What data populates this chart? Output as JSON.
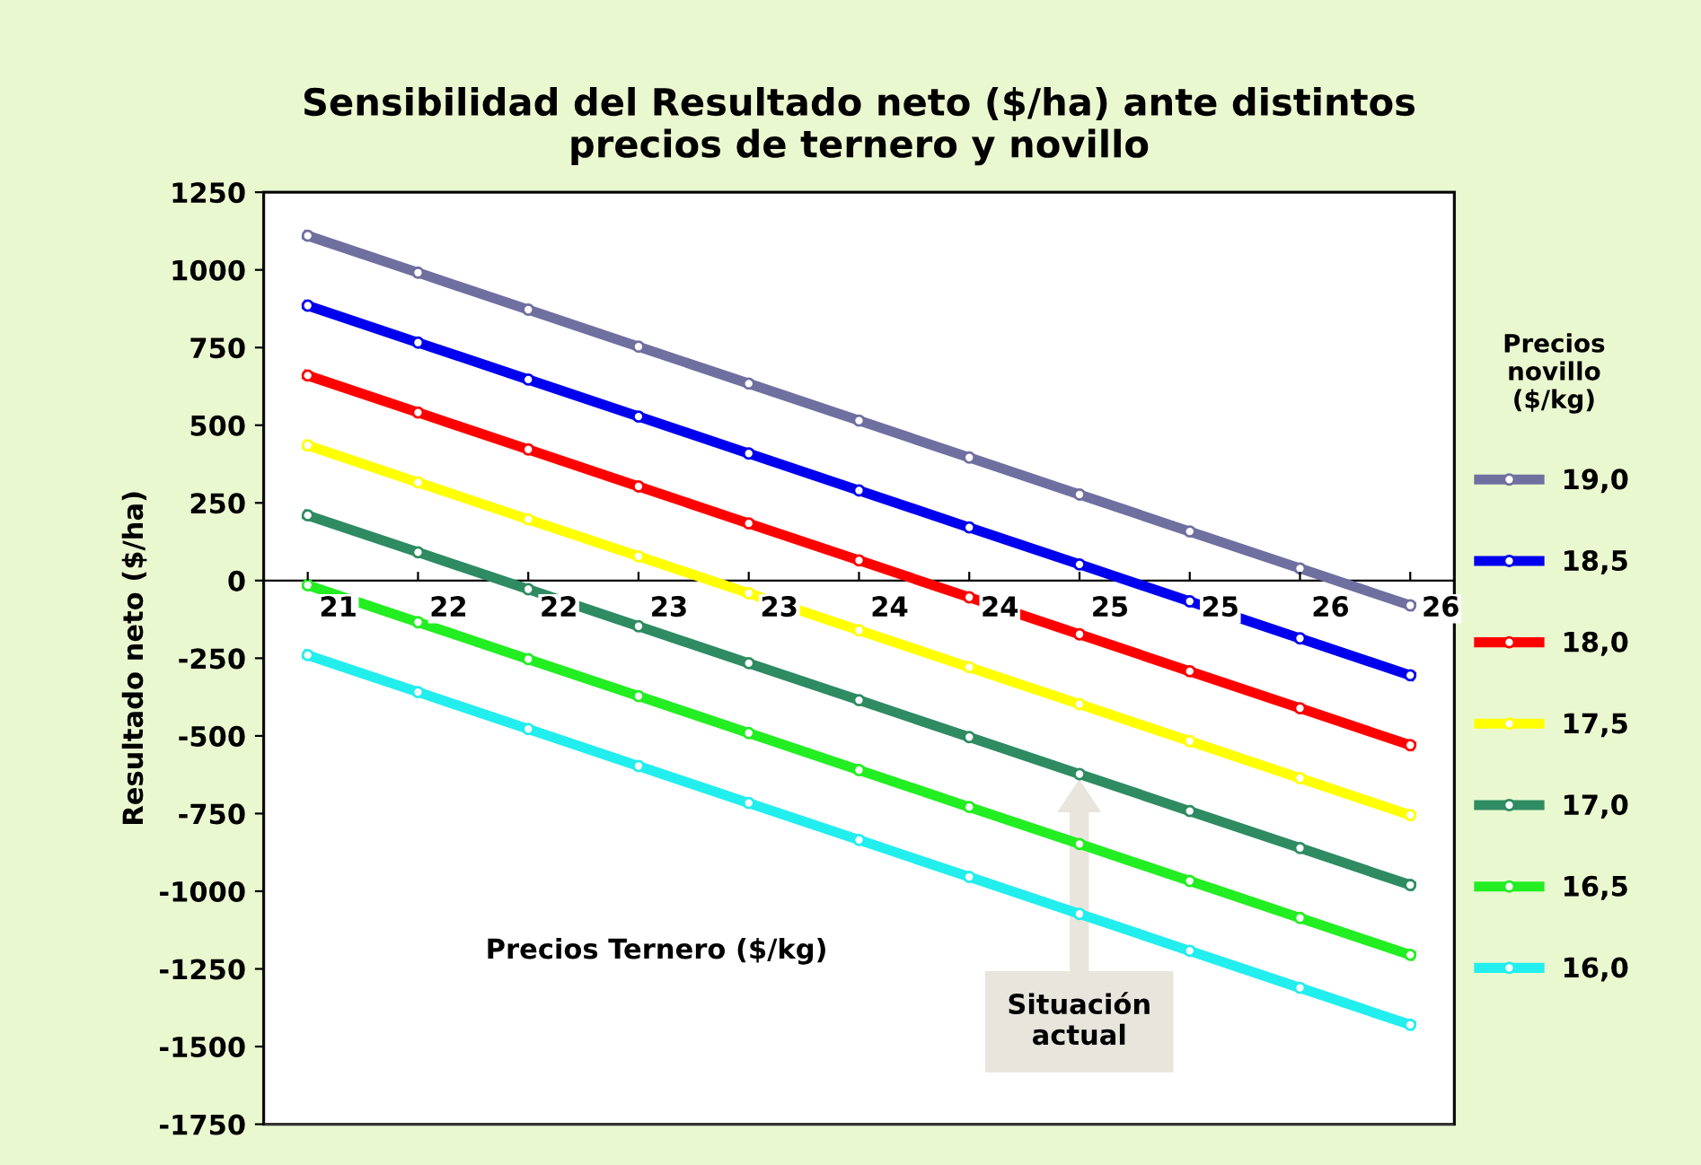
{
  "chart_data": {
    "type": "line",
    "title": "Sensibilidad del Resultado neto ($/ha) ante distintos\nprecios de ternero y novillo",
    "xlabel": "Precios Ternero ($/kg)",
    "ylabel": "Resultado neto ($/ha)",
    "legend_title": "Precios\nnovillo\n($/kg)",
    "categories": [
      "21",
      "22",
      "22",
      "23",
      "23",
      "24",
      "24",
      "25",
      "25",
      "26",
      "26"
    ],
    "series": [
      {
        "name": "19,0",
        "color": "#6f6fa0",
        "values": [
          1110,
          991,
          872,
          753,
          634,
          515,
          396,
          277,
          158,
          39,
          -80
        ]
      },
      {
        "name": "18,5",
        "color": "#0000ee",
        "values": [
          885,
          766,
          647,
          528,
          409,
          290,
          171,
          52,
          -67,
          -186,
          -305
        ]
      },
      {
        "name": "18,0",
        "color": "#ff0000",
        "values": [
          660,
          541,
          422,
          303,
          184,
          65,
          -54,
          -173,
          -292,
          -411,
          -530
        ]
      },
      {
        "name": "17,5",
        "color": "#ffff00",
        "values": [
          435,
          316,
          197,
          78,
          -41,
          -160,
          -279,
          -398,
          -517,
          -636,
          -755
        ]
      },
      {
        "name": "17,0",
        "color": "#2e8b62",
        "values": [
          210,
          91,
          -28,
          -147,
          -266,
          -385,
          -504,
          -623,
          -742,
          -861,
          -980
        ]
      },
      {
        "name": "16,5",
        "color": "#22ee22",
        "values": [
          -15,
          -134,
          -253,
          -372,
          -491,
          -610,
          -729,
          -848,
          -967,
          -1086,
          -1205
        ]
      },
      {
        "name": "16,0",
        "color": "#22eeee",
        "values": [
          -240,
          -359,
          -478,
          -597,
          -716,
          -835,
          -954,
          -1073,
          -1192,
          -1311,
          -1430
        ]
      }
    ],
    "annotations": [
      "Situación\nactual"
    ],
    "ylim": [
      -1750,
      1250
    ],
    "yticks": [
      -1750,
      -1500,
      -1250,
      -1000,
      -750,
      -500,
      -250,
      0,
      250,
      500,
      750,
      1000,
      1250
    ],
    "grid": false,
    "legend": "right",
    "marker": "circle",
    "line_style": "solid"
  }
}
